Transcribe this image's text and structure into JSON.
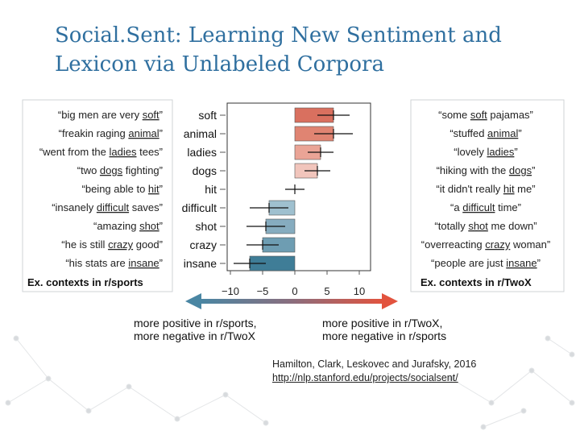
{
  "slide": {
    "title": "Social.Sent: Learning New Sentiment and Lexicon via Unlabeled Corpora"
  },
  "chart_data": {
    "type": "bar",
    "orientation": "horizontal",
    "categories": [
      "soft",
      "animal",
      "ladies",
      "dogs",
      "hit",
      "difficult",
      "shot",
      "crazy",
      "insane"
    ],
    "values": [
      6,
      6,
      4,
      3.5,
      0,
      -4,
      -4.5,
      -5,
      -7
    ],
    "error": [
      2.5,
      3,
      2,
      2,
      1.5,
      3,
      3,
      2.5,
      2.5
    ],
    "xticks": [
      "−10",
      "−5",
      "0",
      "5",
      "10"
    ],
    "xlim": [
      -10,
      10
    ],
    "left_contexts": {
      "label": "Ex. contexts in r/sports",
      "items": [
        {
          "before": "“big men are very ",
          "word": "soft",
          "after": "”"
        },
        {
          "before": "“freakin raging ",
          "word": "animal",
          "after": "”"
        },
        {
          "before": "“went from the ",
          "word": "ladies",
          "after": " tees”"
        },
        {
          "before": "“two ",
          "word": "dogs",
          "after": " fighting”"
        },
        {
          "before": "“being able to ",
          "word": "hit",
          "after": "”"
        },
        {
          "before": "“insanely ",
          "word": "difficult",
          "after": " saves”"
        },
        {
          "before": "“amazing ",
          "word": "shot",
          "after": "”"
        },
        {
          "before": "“he is still ",
          "word": "crazy",
          "after": " good”"
        },
        {
          "before": "“his stats are ",
          "word": "insane",
          "after": "”"
        }
      ]
    },
    "right_contexts": {
      "label": "Ex. contexts in r/TwoX",
      "items": [
        {
          "before": "“some ",
          "word": "soft",
          "after": " pajamas”"
        },
        {
          "before": "“stuffed ",
          "word": "animal",
          "after": "”"
        },
        {
          "before": "“lovely ",
          "word": "ladies",
          "after": "”"
        },
        {
          "before": "“hiking with the ",
          "word": "dogs",
          "after": "”"
        },
        {
          "before": "“it didn't really ",
          "word": "hit",
          "after": " me”"
        },
        {
          "before": "“a ",
          "word": "difficult",
          "after": " time”"
        },
        {
          "before": "“totally ",
          "word": "shot",
          "after": " me down”"
        },
        {
          "before": "“overreacting ",
          "word": "crazy",
          "after": " woman”"
        },
        {
          "before": "“people are just ",
          "word": "insane",
          "after": "”"
        }
      ]
    },
    "arrow": {
      "left_label": [
        "more positive in r/sports,",
        "more negative in r/TwoX"
      ],
      "right_label": [
        "more positive in r/TwoX,",
        "more negative in r/sports"
      ],
      "left_color": "#4a86a3",
      "right_color": "#e2533e"
    },
    "colors": {
      "positive": [
        "#d9705f",
        "#e08472",
        "#eaa496",
        "#f1c5bc"
      ],
      "negative": [
        "#bcd2dc",
        "#9fc0cf",
        "#86acbf",
        "#6e9db2",
        "#3f7d97"
      ]
    }
  },
  "citation": {
    "authors": "Hamilton, Clark, Leskovec and Jurafsky, 2016",
    "url": "http://nlp.stanford.edu/projects/socialsent/"
  }
}
